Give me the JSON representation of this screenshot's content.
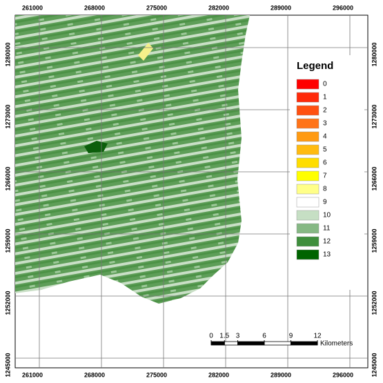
{
  "map": {
    "x_ticks": [
      261000,
      268000,
      275000,
      282000,
      289000,
      296000
    ],
    "y_ticks": [
      1280000,
      1273000,
      1266000,
      1259000,
      1252000,
      1245000
    ],
    "legend": {
      "title": "Legend",
      "items": [
        {
          "label": "0",
          "color": "#ff0000"
        },
        {
          "label": "1",
          "color": "#ff2a0a"
        },
        {
          "label": "2",
          "color": "#ff5010"
        },
        {
          "label": "3",
          "color": "#ff7318"
        },
        {
          "label": "4",
          "color": "#ff9a12"
        },
        {
          "label": "5",
          "color": "#ffbb10"
        },
        {
          "label": "6",
          "color": "#ffdd00"
        },
        {
          "label": "7",
          "color": "#ffff00"
        },
        {
          "label": "8",
          "color": "#ffff88"
        },
        {
          "label": "9",
          "color": "#ffffff"
        },
        {
          "label": "10",
          "color": "#c6dfc4"
        },
        {
          "label": "11",
          "color": "#86b884"
        },
        {
          "label": "12",
          "color": "#3e8e3c"
        },
        {
          "label": "13",
          "color": "#006400"
        }
      ]
    },
    "scale_bar": {
      "ticks": [
        0,
        1.5,
        3,
        6,
        9,
        12
      ],
      "unit": "Kilometers"
    }
  }
}
